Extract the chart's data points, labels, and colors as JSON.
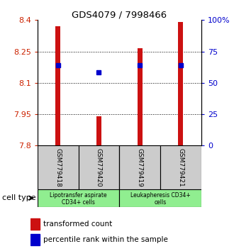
{
  "title": "GDS4079 / 7998466",
  "samples": [
    "GSM779418",
    "GSM779420",
    "GSM779419",
    "GSM779421"
  ],
  "red_values": [
    8.37,
    7.94,
    8.265,
    8.39
  ],
  "blue_values": [
    8.185,
    8.15,
    8.185,
    8.185
  ],
  "ylim": [
    7.8,
    8.4
  ],
  "yticks_left": [
    7.8,
    7.95,
    8.1,
    8.25,
    8.4
  ],
  "ytick_labels_left": [
    "7.8",
    "7.95",
    "8.1",
    "8.25",
    "8.4"
  ],
  "yticks_right": [
    0,
    25,
    50,
    75,
    100
  ],
  "yticks_right_labels": [
    "0",
    "25",
    "50",
    "75",
    "100%"
  ],
  "grid_values": [
    7.95,
    8.1,
    8.25
  ],
  "group1_label1": "Lipotransfer aspirate",
  "group1_label2": "CD34+ cells",
  "group2_label1": "Leukapheresis CD34+",
  "group2_label2": "cells",
  "group_color": "#90ee90",
  "legend_red": "transformed count",
  "legend_blue": "percentile rank within the sample",
  "bar_color": "#cc1111",
  "dot_color": "#0000cc",
  "bar_width": 0.12,
  "tick_color_left": "#cc2200",
  "tick_color_right": "#0000cc",
  "sample_box_color": "#cccccc",
  "x_positions": [
    0,
    1,
    2,
    3
  ],
  "xlim": [
    -0.5,
    3.5
  ]
}
